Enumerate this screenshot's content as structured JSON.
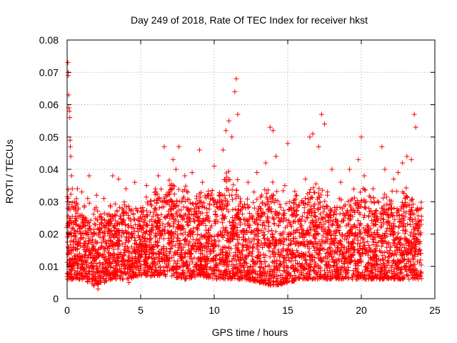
{
  "chart_data": {
    "type": "scatter",
    "title": "Day 249 of 2018, Rate Of TEC Index for receiver hkst",
    "xlabel": "GPS time / hours",
    "ylabel": "ROTI / TECUs",
    "xlim": [
      0,
      25
    ],
    "ylim": [
      0,
      0.08
    ],
    "xticks": [
      0,
      5,
      10,
      15,
      20,
      25
    ],
    "xtick_labels": [
      "0",
      "5",
      "10",
      "15",
      "20",
      "25"
    ],
    "yticks": [
      0,
      0.01,
      0.02,
      0.03,
      0.04,
      0.05,
      0.06,
      0.07,
      0.08
    ],
    "ytick_labels": [
      "0",
      "0.01",
      "0.02",
      "0.03",
      "0.04",
      "0.05",
      "0.06",
      "0.07",
      "0.08"
    ],
    "grid": true,
    "marker": "+",
    "color": "#ff0000",
    "series": [
      {
        "points": [
          [
            0.0,
            0.022
          ],
          [
            0.02,
            0.03
          ],
          [
            0.05,
            0.073
          ],
          [
            0.07,
            0.07
          ],
          [
            0.08,
            0.069
          ],
          [
            0.1,
            0.063
          ],
          [
            0.12,
            0.059
          ],
          [
            0.15,
            0.058
          ],
          [
            0.18,
            0.056
          ],
          [
            0.2,
            0.049
          ],
          [
            0.22,
            0.047
          ],
          [
            0.25,
            0.044
          ],
          [
            0.3,
            0.038
          ],
          [
            0.35,
            0.034
          ],
          [
            0.1,
            0.016
          ],
          [
            0.3,
            0.012
          ],
          [
            0.5,
            0.03
          ],
          [
            0.6,
            0.008
          ],
          [
            0.7,
            0.034
          ],
          [
            0.9,
            0.02
          ],
          [
            1.0,
            0.033
          ],
          [
            1.2,
            0.009
          ],
          [
            1.4,
            0.031
          ],
          [
            1.5,
            0.038
          ],
          [
            1.6,
            0.014
          ],
          [
            1.8,
            0.004
          ],
          [
            2.0,
            0.032
          ],
          [
            2.1,
            0.003
          ],
          [
            2.3,
            0.025
          ],
          [
            2.5,
            0.031
          ],
          [
            2.7,
            0.009
          ],
          [
            2.9,
            0.024
          ],
          [
            3.1,
            0.038
          ],
          [
            3.3,
            0.02
          ],
          [
            3.5,
            0.037
          ],
          [
            3.7,
            0.01
          ],
          [
            3.9,
            0.029
          ],
          [
            4.0,
            0.034
          ],
          [
            4.2,
            0.005
          ],
          [
            4.4,
            0.022
          ],
          [
            4.6,
            0.036
          ],
          [
            4.8,
            0.015
          ],
          [
            5.0,
            0.028
          ],
          [
            5.2,
            0.008
          ],
          [
            5.4,
            0.035
          ],
          [
            5.6,
            0.021
          ],
          [
            5.8,
            0.01
          ],
          [
            6.0,
            0.034
          ],
          [
            6.2,
            0.038
          ],
          [
            6.4,
            0.026
          ],
          [
            6.6,
            0.047
          ],
          [
            6.8,
            0.012
          ],
          [
            7.0,
            0.035
          ],
          [
            7.2,
            0.043
          ],
          [
            7.4,
            0.04
          ],
          [
            7.6,
            0.047
          ],
          [
            7.8,
            0.03
          ],
          [
            8.0,
            0.038
          ],
          [
            8.2,
            0.01
          ],
          [
            8.5,
            0.039
          ],
          [
            8.8,
            0.022
          ],
          [
            9.0,
            0.046
          ],
          [
            9.2,
            0.036
          ],
          [
            9.5,
            0.012
          ],
          [
            9.8,
            0.032
          ],
          [
            10.0,
            0.041
          ],
          [
            10.3,
            0.028
          ],
          [
            10.6,
            0.046
          ],
          [
            10.8,
            0.052
          ],
          [
            11.0,
            0.055
          ],
          [
            11.2,
            0.05
          ],
          [
            11.4,
            0.064
          ],
          [
            11.5,
            0.068
          ],
          [
            11.6,
            0.057
          ],
          [
            11.8,
            0.03
          ],
          [
            12.0,
            0.012
          ],
          [
            12.3,
            0.036
          ],
          [
            12.6,
            0.025
          ],
          [
            12.9,
            0.039
          ],
          [
            13.2,
            0.008
          ],
          [
            13.5,
            0.042
          ],
          [
            13.8,
            0.053
          ],
          [
            14.0,
            0.052
          ],
          [
            14.2,
            0.044
          ],
          [
            14.5,
            0.017
          ],
          [
            14.8,
            0.035
          ],
          [
            15.0,
            0.048
          ],
          [
            15.3,
            0.01
          ],
          [
            15.6,
            0.032
          ],
          [
            15.9,
            0.024
          ],
          [
            16.2,
            0.037
          ],
          [
            16.5,
            0.05
          ],
          [
            16.7,
            0.051
          ],
          [
            16.9,
            0.02
          ],
          [
            17.1,
            0.047
          ],
          [
            17.3,
            0.057
          ],
          [
            17.5,
            0.054
          ],
          [
            17.7,
            0.033
          ],
          [
            18.0,
            0.04
          ],
          [
            18.3,
            0.012
          ],
          [
            18.6,
            0.036
          ],
          [
            18.9,
            0.029
          ],
          [
            19.2,
            0.04
          ],
          [
            19.5,
            0.015
          ],
          [
            19.8,
            0.043
          ],
          [
            20.0,
            0.05
          ],
          [
            20.2,
            0.038
          ],
          [
            20.5,
            0.011
          ],
          [
            20.8,
            0.034
          ],
          [
            21.1,
            0.02
          ],
          [
            21.4,
            0.047
          ],
          [
            21.6,
            0.04
          ],
          [
            21.9,
            0.013
          ],
          [
            22.2,
            0.037
          ],
          [
            22.5,
            0.039
          ],
          [
            22.8,
            0.042
          ],
          [
            23.1,
            0.044
          ],
          [
            23.4,
            0.043
          ],
          [
            23.6,
            0.057
          ],
          [
            23.7,
            0.053
          ],
          [
            23.9,
            0.024
          ],
          [
            24.0,
            0.015
          ]
        ]
      }
    ],
    "cloud": {
      "description_free": true,
      "envelope_x": [
        0,
        1,
        2,
        3,
        4,
        5,
        6,
        7,
        8,
        9,
        10,
        11,
        12,
        13,
        14,
        15,
        16,
        17,
        18,
        19,
        20,
        21,
        22,
        23,
        24
      ],
      "envelope_low": [
        0.006,
        0.006,
        0.004,
        0.006,
        0.006,
        0.007,
        0.007,
        0.007,
        0.006,
        0.007,
        0.006,
        0.006,
        0.006,
        0.005,
        0.004,
        0.005,
        0.006,
        0.006,
        0.006,
        0.006,
        0.006,
        0.006,
        0.006,
        0.006,
        0.006
      ],
      "envelope_high": [
        0.033,
        0.028,
        0.026,
        0.027,
        0.028,
        0.028,
        0.031,
        0.034,
        0.033,
        0.031,
        0.033,
        0.037,
        0.031,
        0.03,
        0.034,
        0.029,
        0.031,
        0.034,
        0.029,
        0.03,
        0.033,
        0.03,
        0.031,
        0.033,
        0.028
      ]
    }
  }
}
